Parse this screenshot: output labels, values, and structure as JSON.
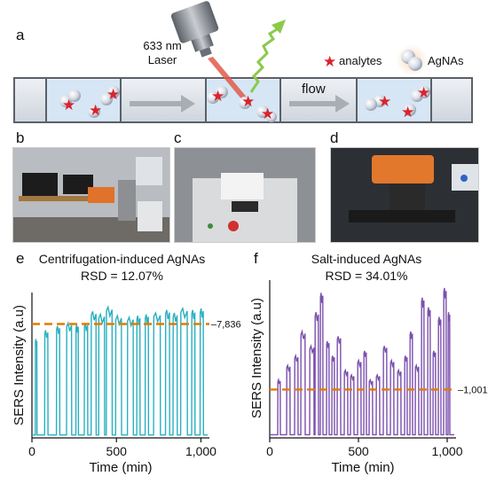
{
  "panel_labels": {
    "a": "a",
    "b": "b",
    "c": "c",
    "d": "d",
    "e": "e",
    "f": "f"
  },
  "schematic": {
    "laser_line1": "633 nm",
    "laser_line2": "Laser",
    "legend_analytes": "analytes",
    "legend_agnas": "AgNAs",
    "flow_label": "flow"
  },
  "chart_data": [
    {
      "type": "line",
      "title": "Centrifugation-induced AgNAs",
      "subtitle": "RSD = 12.07%",
      "xlabel": "Time (min)",
      "ylabel": "SERS Intensity (a.u)",
      "xticks": [
        "0",
        "500",
        "1,000"
      ],
      "xlim": [
        0,
        1050
      ],
      "ylim": [
        0,
        10000
      ],
      "reference_line": {
        "value": 7836,
        "label": "7,836",
        "color": "#e07b00"
      },
      "series": [
        {
          "color": "#2ab0c0",
          "pulses": [
            [
              20,
              30,
              6800
            ],
            [
              75,
              95,
              7400
            ],
            [
              145,
              165,
              7700
            ],
            [
              205,
              235,
              7900
            ],
            [
              260,
              275,
              7800
            ],
            [
              310,
              330,
              7900
            ],
            [
              350,
              380,
              8700
            ],
            [
              395,
              430,
              8500
            ],
            [
              440,
              475,
              9000
            ],
            [
              495,
              530,
              8400
            ],
            [
              565,
              600,
              8300
            ],
            [
              620,
              640,
              8400
            ],
            [
              670,
              690,
              8500
            ],
            [
              720,
              760,
              8600
            ],
            [
              790,
              815,
              8800
            ],
            [
              835,
              860,
              8600
            ],
            [
              880,
              920,
              8900
            ],
            [
              945,
              965,
              8800
            ],
            [
              995,
              1015,
              8900
            ]
          ]
        }
      ]
    },
    {
      "type": "line",
      "title": "Salt-induced AgNAs",
      "subtitle": "RSD = 34.01%",
      "xlabel": "Time (min)",
      "ylabel": "SERS Intensity (a.u)",
      "xticks": [
        "0",
        "500",
        "1,000"
      ],
      "xlim": [
        0,
        1050
      ],
      "ylim": [
        0,
        3300
      ],
      "reference_line": {
        "value": 1001,
        "label": "1,001",
        "color": "#e07b00"
      },
      "series": [
        {
          "color": "#7b4fae",
          "pulses": [
            [
              45,
              60,
              1200
            ],
            [
              95,
              115,
              1500
            ],
            [
              140,
              160,
              1700
            ],
            [
              175,
              200,
              2200
            ],
            [
              225,
              250,
              1900
            ],
            [
              255,
              275,
              2600
            ],
            [
              285,
              300,
              3000
            ],
            [
              320,
              335,
              2000
            ],
            [
              350,
              365,
              1700
            ],
            [
              380,
              400,
              2100
            ],
            [
              420,
              440,
              1400
            ],
            [
              455,
              475,
              1300
            ],
            [
              495,
              515,
              1600
            ],
            [
              530,
              545,
              1800
            ],
            [
              560,
              580,
              1200
            ],
            [
              600,
              620,
              1300
            ],
            [
              640,
              660,
              1900
            ],
            [
              680,
              700,
              1600
            ],
            [
              720,
              740,
              1400
            ],
            [
              760,
              775,
              1700
            ],
            [
              790,
              805,
              2200
            ],
            [
              820,
              840,
              1500
            ],
            [
              855,
              870,
              2900
            ],
            [
              890,
              905,
              2700
            ],
            [
              920,
              935,
              1800
            ],
            [
              950,
              965,
              2500
            ],
            [
              980,
              995,
              3100
            ],
            [
              1005,
              1015,
              2600
            ]
          ]
        }
      ]
    }
  ]
}
